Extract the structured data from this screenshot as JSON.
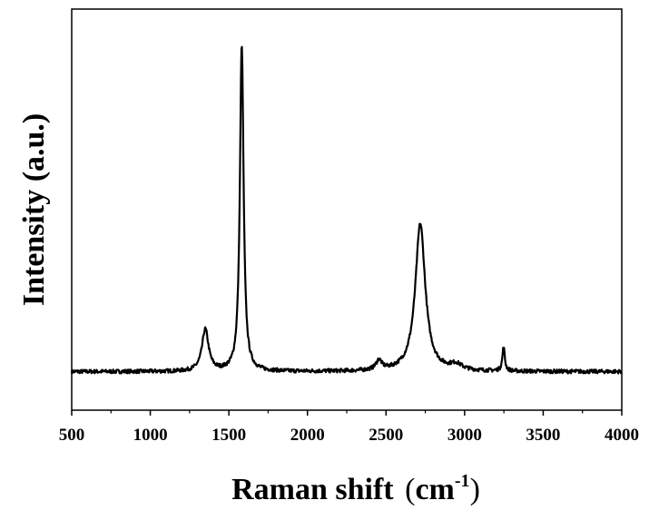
{
  "chart_data": {
    "type": "line",
    "xlabel": "Raman shift",
    "xlabel_unit_open": "(",
    "xlabel_unit_base": "cm",
    "xlabel_unit_sup": "-1",
    "xlabel_unit_close": ")",
    "ylabel": "Intensity (a.u.)",
    "xlim": [
      500,
      4000
    ],
    "ylim": [
      0,
      1.25
    ],
    "x_ticks": [
      500,
      1000,
      1500,
      2000,
      2500,
      3000,
      3500,
      4000
    ],
    "x_tick_labels": [
      "500",
      "1000",
      "1500",
      "2000",
      "2500",
      "3000",
      "3500",
      "4000"
    ],
    "y_ticks_shown": false,
    "grid": false,
    "line_color": "#000000",
    "baseline": 0.12,
    "noise_amplitude": 0.006,
    "peaks": [
      {
        "x": 1350,
        "height": 0.13,
        "width": 25
      },
      {
        "x": 1582,
        "height": 1.02,
        "width": 14
      },
      {
        "x": 2455,
        "height": 0.03,
        "width": 22
      },
      {
        "x": 2718,
        "height": 0.46,
        "width": 38
      },
      {
        "x": 2945,
        "height": 0.018,
        "width": 45
      },
      {
        "x": 3248,
        "height": 0.075,
        "width": 9
      }
    ],
    "step": 3
  }
}
